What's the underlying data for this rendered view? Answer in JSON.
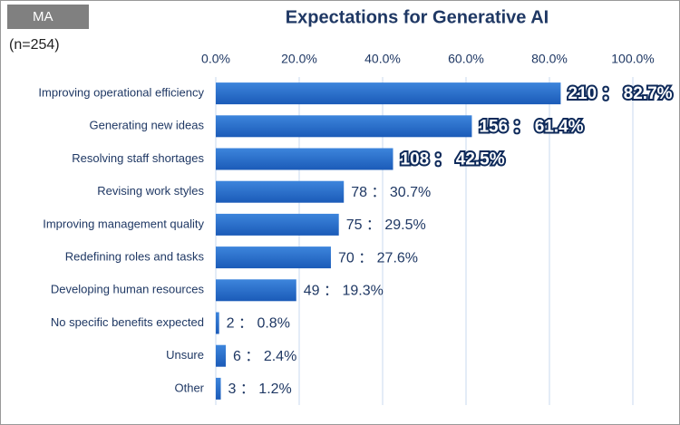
{
  "chart_data": {
    "type": "bar",
    "orientation": "horizontal",
    "title": "Expectations for Generative AI",
    "badge": "MA",
    "sample_note": "(n=254)",
    "categories": [
      "Improving operational efficiency",
      "Generating new ideas",
      "Resolving staff shortages",
      "Revising work styles",
      "Improving management quality",
      "Redefining roles and tasks",
      "Developing human resources",
      "No specific benefits expected",
      "Unsure",
      "Other"
    ],
    "values": [
      82.7,
      61.4,
      42.5,
      30.7,
      29.5,
      27.6,
      19.3,
      0.8,
      2.4,
      1.2
    ],
    "value_labels": [
      "210 ： 82.7%",
      "156 ： 61.4%",
      "108 ： 42.5%",
      "78 ： 30.7%",
      "75 ： 29.5%",
      "70 ： 27.6%",
      "49 ： 19.3%",
      "2 ： 0.8%",
      "6 ： 2.4%",
      "3 ： 1.2%"
    ],
    "color": "#2a6cc8",
    "xlim": [
      0,
      100
    ],
    "xticks": [
      {
        "value": 0,
        "label": "0.0%"
      },
      {
        "value": 20,
        "label": "20.0%"
      },
      {
        "value": 40,
        "label": "40.0%"
      },
      {
        "value": 60,
        "label": "60.0%"
      },
      {
        "value": 80,
        "label": "80.0%"
      },
      {
        "value": 100,
        "label": "100.0%"
      }
    ],
    "grid": true
  }
}
